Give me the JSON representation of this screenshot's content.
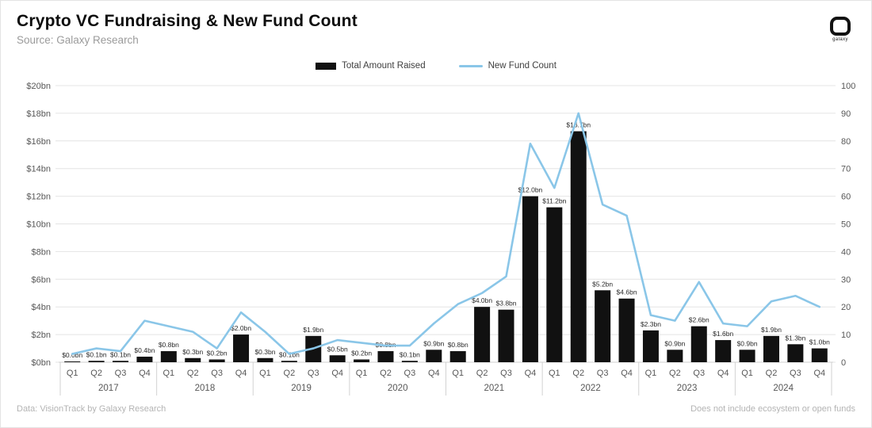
{
  "header": {
    "title": "Crypto VC Fundraising & New Fund Count",
    "subtitle": "Source: Galaxy Research",
    "logo_word": "galaxy"
  },
  "legend": {
    "items": [
      {
        "label": "Total Amount Raised",
        "type": "bar",
        "color": "#111111"
      },
      {
        "label": "New Fund Count",
        "type": "line",
        "color": "#8ac6e8"
      }
    ]
  },
  "footer": {
    "left": "Data: VisionTrack by Galaxy Research",
    "right": "Does not include ecosystem or open funds"
  },
  "colors": {
    "bar": "#111111",
    "line": "#8ac6e8",
    "grid": "#e4e4e4",
    "axis_text": "#575757",
    "bar_label_text": "#2b2b2b",
    "baseline": "#cfcfcf",
    "separator": "#d2d2d2"
  },
  "chart_data": {
    "type": "bar+line",
    "title": "Crypto VC Fundraising & New Fund Count",
    "years": [
      "2017",
      "2018",
      "2019",
      "2020",
      "2021",
      "2022",
      "2023",
      "2024"
    ],
    "quarters": [
      "Q1",
      "Q2",
      "Q3",
      "Q4"
    ],
    "left_axis": {
      "label": "Total Amount Raised ($bn)",
      "min": 0,
      "max": 20,
      "ticks": [
        "$0bn",
        "$2bn",
        "$4bn",
        "$6bn",
        "$8bn",
        "$10bn",
        "$12bn",
        "$14bn",
        "$16bn",
        "$18bn",
        "$20bn"
      ]
    },
    "right_axis": {
      "label": "New Fund Count",
      "min": 0,
      "max": 100,
      "ticks": [
        "0",
        "10",
        "20",
        "30",
        "40",
        "50",
        "60",
        "70",
        "80",
        "90",
        "100"
      ]
    },
    "series": [
      {
        "name": "Total Amount Raised",
        "type": "bar",
        "unit": "$bn",
        "values": [
          0.0,
          0.1,
          0.1,
          0.4,
          0.8,
          0.3,
          0.2,
          2.0,
          0.3,
          0.1,
          1.9,
          0.5,
          0.2,
          0.8,
          0.1,
          0.9,
          0.8,
          4.0,
          3.8,
          12.0,
          11.2,
          16.7,
          5.2,
          4.6,
          2.3,
          0.9,
          2.6,
          1.6,
          0.9,
          1.9,
          1.3,
          1.0
        ],
        "labels": [
          "$0.0bn",
          "$0.1bn",
          "$0.1bn",
          "$0.4bn",
          "$0.8bn",
          "$0.3bn",
          "$0.2bn",
          "$2.0bn",
          "$0.3bn",
          "$0.1bn",
          "$1.9bn",
          "$0.5bn",
          "$0.2bn",
          "$0.8bn",
          "$0.1bn",
          "$0.9bn",
          "$0.8bn",
          "$4.0bn",
          "$3.8bn",
          "$12.0bn",
          "$11.2bn",
          "$16.7bn",
          "$5.2bn",
          "$4.6bn",
          "$2.3bn",
          "$0.9bn",
          "$2.6bn",
          "$1.6bn",
          "$0.9bn",
          "$1.9bn",
          "$1.3bn",
          "$1.0bn"
        ]
      },
      {
        "name": "New Fund Count",
        "type": "line",
        "values": [
          3,
          5,
          4,
          15,
          13,
          11,
          5,
          18,
          11,
          3,
          5,
          8,
          7,
          6,
          6,
          14,
          21,
          25,
          31,
          79,
          63,
          90,
          57,
          53,
          17,
          15,
          29,
          14,
          13,
          22,
          24,
          20
        ]
      }
    ],
    "grid": true,
    "legend_position": "top-center"
  }
}
